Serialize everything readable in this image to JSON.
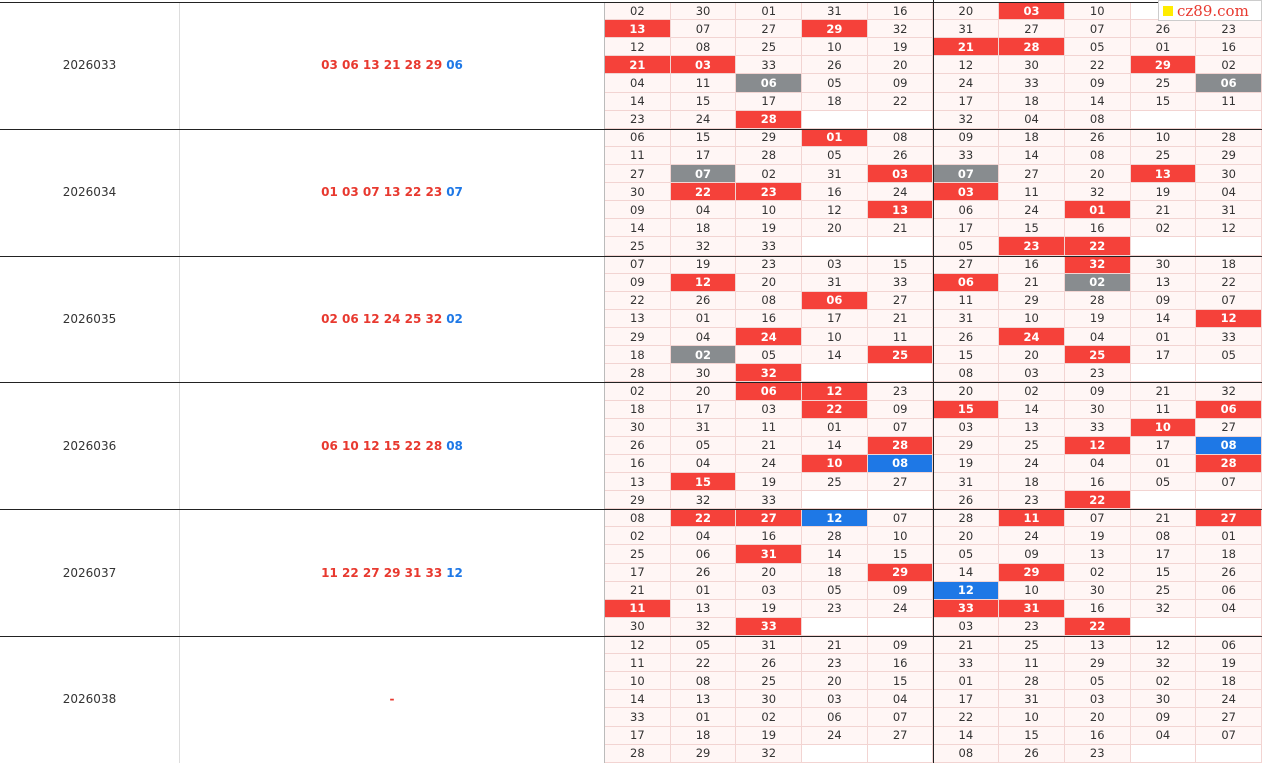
{
  "logo": {
    "text": "cz89.com"
  },
  "table": {
    "blocks": [
      {
        "period": "2026033",
        "draw_red": "03 06 13 21 28 29",
        "draw_blue": "06",
        "grid": [
          [
            "02",
            "30",
            "01",
            "31",
            "16",
            "20",
            {
              "text": "03",
              "color": "red"
            },
            "10",
            null,
            null
          ],
          [
            {
              "text": "13",
              "color": "red"
            },
            "07",
            "27",
            {
              "text": "29",
              "color": "red"
            },
            "32",
            "31",
            "27",
            "07",
            "26",
            "23"
          ],
          [
            "12",
            "08",
            "25",
            "10",
            "19",
            {
              "text": "21",
              "color": "red"
            },
            {
              "text": "28",
              "color": "red"
            },
            "05",
            "01",
            "16"
          ],
          [
            {
              "text": "21",
              "color": "red"
            },
            {
              "text": "03",
              "color": "red"
            },
            "33",
            "26",
            "20",
            "12",
            "30",
            "22",
            {
              "text": "29",
              "color": "red"
            },
            "02"
          ],
          [
            "04",
            "11",
            {
              "text": "06",
              "color": "gray"
            },
            "05",
            "09",
            "24",
            "33",
            "09",
            "25",
            {
              "text": "06",
              "color": "gray"
            }
          ],
          [
            "14",
            "15",
            "17",
            "18",
            "22",
            "17",
            "18",
            "14",
            "15",
            "11"
          ],
          [
            "23",
            "24",
            {
              "text": "28",
              "color": "red"
            },
            null,
            null,
            "32",
            "04",
            "08",
            null,
            null
          ]
        ]
      },
      {
        "period": "2026034",
        "draw_red": "01 03 07 13 22 23",
        "draw_blue": "07",
        "grid": [
          [
            "06",
            "15",
            "29",
            {
              "text": "01",
              "color": "red"
            },
            "08",
            "09",
            "18",
            "26",
            "10",
            "28"
          ],
          [
            "11",
            "17",
            "28",
            "05",
            "26",
            "33",
            "14",
            "08",
            "25",
            "29"
          ],
          [
            "27",
            {
              "text": "07",
              "color": "gray"
            },
            "02",
            "31",
            {
              "text": "03",
              "color": "red"
            },
            {
              "text": "07",
              "color": "gray"
            },
            "27",
            "20",
            {
              "text": "13",
              "color": "red"
            },
            "30"
          ],
          [
            "30",
            {
              "text": "22",
              "color": "red"
            },
            {
              "text": "23",
              "color": "red"
            },
            "16",
            "24",
            {
              "text": "03",
              "color": "red"
            },
            "11",
            "32",
            "19",
            "04"
          ],
          [
            "09",
            "04",
            "10",
            "12",
            {
              "text": "13",
              "color": "red"
            },
            "06",
            "24",
            {
              "text": "01",
              "color": "red"
            },
            "21",
            "31"
          ],
          [
            "14",
            "18",
            "19",
            "20",
            "21",
            "17",
            "15",
            "16",
            "02",
            "12"
          ],
          [
            "25",
            "32",
            "33",
            null,
            null,
            "05",
            {
              "text": "23",
              "color": "red"
            },
            {
              "text": "22",
              "color": "red"
            },
            null,
            null
          ]
        ]
      },
      {
        "period": "2026035",
        "draw_red": "02 06 12 24 25 32",
        "draw_blue": "02",
        "grid": [
          [
            "07",
            "19",
            "23",
            "03",
            "15",
            "27",
            "16",
            {
              "text": "32",
              "color": "red"
            },
            "30",
            "18"
          ],
          [
            "09",
            {
              "text": "12",
              "color": "red"
            },
            "20",
            "31",
            "33",
            {
              "text": "06",
              "color": "red"
            },
            "21",
            {
              "text": "02",
              "color": "gray"
            },
            "13",
            "22"
          ],
          [
            "22",
            "26",
            "08",
            {
              "text": "06",
              "color": "red"
            },
            "27",
            "11",
            "29",
            "28",
            "09",
            "07"
          ],
          [
            "13",
            "01",
            "16",
            "17",
            "21",
            "31",
            "10",
            "19",
            "14",
            {
              "text": "12",
              "color": "red"
            }
          ],
          [
            "29",
            "04",
            {
              "text": "24",
              "color": "red"
            },
            "10",
            "11",
            "26",
            {
              "text": "24",
              "color": "red"
            },
            "04",
            "01",
            "33"
          ],
          [
            "18",
            {
              "text": "02",
              "color": "gray"
            },
            "05",
            "14",
            {
              "text": "25",
              "color": "red"
            },
            "15",
            "20",
            {
              "text": "25",
              "color": "red"
            },
            "17",
            "05"
          ],
          [
            "28",
            "30",
            {
              "text": "32",
              "color": "red"
            },
            null,
            null,
            "08",
            "03",
            "23",
            null,
            null
          ]
        ]
      },
      {
        "period": "2026036",
        "draw_red": "06 10 12 15 22 28",
        "draw_blue": "08",
        "grid": [
          [
            "02",
            "20",
            {
              "text": "06",
              "color": "red"
            },
            {
              "text": "12",
              "color": "red"
            },
            "23",
            "20",
            "02",
            "09",
            "21",
            "32"
          ],
          [
            "18",
            "17",
            "03",
            {
              "text": "22",
              "color": "red"
            },
            "09",
            {
              "text": "15",
              "color": "red"
            },
            "14",
            "30",
            "11",
            {
              "text": "06",
              "color": "red"
            }
          ],
          [
            "30",
            "31",
            "11",
            "01",
            "07",
            "03",
            "13",
            "33",
            {
              "text": "10",
              "color": "red"
            },
            "27"
          ],
          [
            "26",
            "05",
            "21",
            "14",
            {
              "text": "28",
              "color": "red"
            },
            "29",
            "25",
            {
              "text": "12",
              "color": "red"
            },
            "17",
            {
              "text": "08",
              "color": "blue"
            }
          ],
          [
            "16",
            "04",
            "24",
            {
              "text": "10",
              "color": "red"
            },
            {
              "text": "08",
              "color": "blue"
            },
            "19",
            "24",
            "04",
            "01",
            {
              "text": "28",
              "color": "red"
            }
          ],
          [
            "13",
            {
              "text": "15",
              "color": "red"
            },
            "19",
            "25",
            "27",
            "31",
            "18",
            "16",
            "05",
            "07"
          ],
          [
            "29",
            "32",
            "33",
            null,
            null,
            "26",
            "23",
            {
              "text": "22",
              "color": "red"
            },
            null,
            null
          ]
        ]
      },
      {
        "period": "2026037",
        "draw_red": "11 22 27 29 31 33",
        "draw_blue": "12",
        "grid": [
          [
            "08",
            {
              "text": "22",
              "color": "red"
            },
            {
              "text": "27",
              "color": "red"
            },
            {
              "text": "12",
              "color": "blue"
            },
            "07",
            "28",
            {
              "text": "11",
              "color": "red"
            },
            "07",
            "21",
            {
              "text": "27",
              "color": "red"
            }
          ],
          [
            "02",
            "04",
            "16",
            "28",
            "10",
            "20",
            "24",
            "19",
            "08",
            "01"
          ],
          [
            "25",
            "06",
            {
              "text": "31",
              "color": "red"
            },
            "14",
            "15",
            "05",
            "09",
            "13",
            "17",
            "18"
          ],
          [
            "17",
            "26",
            "20",
            "18",
            {
              "text": "29",
              "color": "red"
            },
            "14",
            {
              "text": "29",
              "color": "red"
            },
            "02",
            "15",
            "26"
          ],
          [
            "21",
            "01",
            "03",
            "05",
            "09",
            {
              "text": "12",
              "color": "blue"
            },
            "10",
            "30",
            "25",
            "06"
          ],
          [
            {
              "text": "11",
              "color": "red"
            },
            "13",
            "19",
            "23",
            "24",
            {
              "text": "33",
              "color": "red"
            },
            {
              "text": "31",
              "color": "red"
            },
            "16",
            "32",
            "04"
          ],
          [
            "30",
            "32",
            {
              "text": "33",
              "color": "red"
            },
            null,
            null,
            "03",
            "23",
            {
              "text": "22",
              "color": "red"
            },
            null,
            null
          ]
        ]
      },
      {
        "period": "2026038",
        "draw_red": "-",
        "grid": [
          [
            "12",
            "05",
            "31",
            "21",
            "09",
            "21",
            "25",
            "13",
            "12",
            "06"
          ],
          [
            "11",
            "22",
            "26",
            "23",
            "16",
            "33",
            "11",
            "29",
            "32",
            "19"
          ],
          [
            "10",
            "08",
            "25",
            "20",
            "15",
            "01",
            "28",
            "05",
            "02",
            "18"
          ],
          [
            "14",
            "13",
            "30",
            "03",
            "04",
            "17",
            "31",
            "03",
            "30",
            "24"
          ],
          [
            "33",
            "01",
            "02",
            "06",
            "07",
            "22",
            "10",
            "20",
            "09",
            "27"
          ],
          [
            "17",
            "18",
            "19",
            "24",
            "27",
            "14",
            "15",
            "16",
            "04",
            "07"
          ],
          [
            "28",
            "29",
            "32",
            null,
            null,
            "08",
            "26",
            "23",
            null,
            null
          ]
        ]
      }
    ]
  }
}
